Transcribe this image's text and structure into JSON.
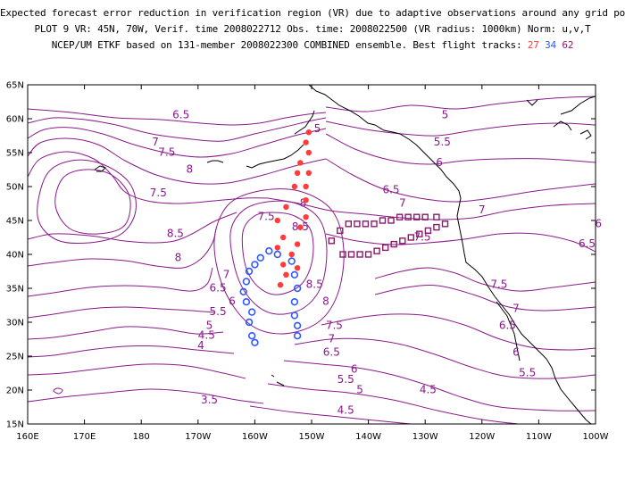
{
  "header": {
    "line1": "Expected forecast error reduction in verification region (VR) due to adaptive observations around any grid point.",
    "line2": "PLOT 9 VR: 45N, 70W, Verif. time 2008022712 Obs. time: 2008022500 (VR radius: 1000km) Norm: u,v,T",
    "line3_prefix": "NCEP/UM ETKF based on 131-member 2008022300 COMBINED ensemble.  Best flight tracks:",
    "track_27": "27",
    "track_34": "34",
    "track_62": "62"
  },
  "colors": {
    "contour": "#8a1a8a",
    "coast": "#000000",
    "track_27": "#ff3b3b",
    "track_34": "#2f58ff",
    "track_62": "#8b1a6b"
  },
  "axes": {
    "lat_labels": [
      "65N",
      "60N",
      "55N",
      "50N",
      "45N",
      "40N",
      "35N",
      "30N",
      "25N",
      "20N",
      "15N"
    ],
    "lon_labels": [
      "160E",
      "170E",
      "180",
      "170W",
      "160W",
      "150W",
      "140W",
      "130W",
      "120W",
      "110W",
      "100W"
    ]
  },
  "contour_labels": [
    {
      "t": "6.5",
      "lon": -173,
      "lat": 60.5
    },
    {
      "t": "7",
      "lon": -177.5,
      "lat": 56.5
    },
    {
      "t": "7.5",
      "lon": -175.5,
      "lat": 55
    },
    {
      "t": "8",
      "lon": -171.5,
      "lat": 52.5
    },
    {
      "t": "8.5",
      "lon": -174,
      "lat": 43
    },
    {
      "t": "8",
      "lon": -173.5,
      "lat": 39.5
    },
    {
      "t": "7.5",
      "lon": -158,
      "lat": 45.5
    },
    {
      "t": "7.5",
      "lon": -177,
      "lat": 49
    },
    {
      "t": "7",
      "lon": -165,
      "lat": 37
    },
    {
      "t": "6.5",
      "lon": -166.5,
      "lat": 35
    },
    {
      "t": "6",
      "lon": -164,
      "lat": 33
    },
    {
      "t": "5.5",
      "lon": -166.5,
      "lat": 31.5
    },
    {
      "t": "5",
      "lon": -168,
      "lat": 29.5
    },
    {
      "t": "4.5",
      "lon": -168.5,
      "lat": 28
    },
    {
      "t": "4",
      "lon": -169.5,
      "lat": 26.5
    },
    {
      "t": "3.5",
      "lon": -168,
      "lat": 18.5
    },
    {
      "t": "5",
      "lon": -149,
      "lat": 58.5
    },
    {
      "t": "5",
      "lon": -126.5,
      "lat": 60.5
    },
    {
      "t": "5.5",
      "lon": -127,
      "lat": 56.5
    },
    {
      "t": "6",
      "lon": -127.5,
      "lat": 53.5
    },
    {
      "t": "6.5",
      "lon": -136,
      "lat": 49.5
    },
    {
      "t": "7",
      "lon": -134,
      "lat": 47.5
    },
    {
      "t": "7.5",
      "lon": -130.5,
      "lat": 42.5
    },
    {
      "t": "7",
      "lon": -120,
      "lat": 46.5
    },
    {
      "t": "6",
      "lon": -99.5,
      "lat": 44.5
    },
    {
      "t": "6.5",
      "lon": -101.5,
      "lat": 41.5
    },
    {
      "t": "6.5",
      "lon": -90.5,
      "lat": 37.5
    },
    {
      "t": "7.5",
      "lon": -117,
      "lat": 35.5
    },
    {
      "t": "7",
      "lon": -114,
      "lat": 32
    },
    {
      "t": "6.5",
      "lon": -115.5,
      "lat": 29.5
    },
    {
      "t": "6",
      "lon": -114,
      "lat": 25.5
    },
    {
      "t": "5.5",
      "lon": -112,
      "lat": 22.5
    },
    {
      "t": "4.5",
      "lon": -129.5,
      "lat": 20
    },
    {
      "t": "8.5",
      "lon": -152,
      "lat": 44
    },
    {
      "t": "8",
      "lon": -151.5,
      "lat": 47.5
    },
    {
      "t": "8",
      "lon": -147.5,
      "lat": 33
    },
    {
      "t": "8.5",
      "lon": -149.5,
      "lat": 35.5
    },
    {
      "t": "7.5",
      "lon": -146,
      "lat": 29.5
    },
    {
      "t": "7",
      "lon": -146.5,
      "lat": 27.5
    },
    {
      "t": "6.5",
      "lon": -146.5,
      "lat": 25.5
    },
    {
      "t": "6",
      "lon": -142.5,
      "lat": 23
    },
    {
      "t": "5.5",
      "lon": -144,
      "lat": 21.5
    },
    {
      "t": "5",
      "lon": -141.5,
      "lat": 20
    },
    {
      "t": "4.5",
      "lon": -144,
      "lat": 17
    }
  ],
  "track_27": [
    [
      -150.5,
      58
    ],
    [
      -151,
      56.5
    ],
    [
      -150.5,
      55
    ],
    [
      -152,
      53.5
    ],
    [
      -150.5,
      52
    ],
    [
      -152.5,
      52
    ],
    [
      -151,
      50
    ],
    [
      -153,
      50
    ],
    [
      -151,
      48
    ],
    [
      -154.5,
      47
    ],
    [
      -151,
      45.5
    ],
    [
      -156,
      45
    ],
    [
      -152,
      44
    ],
    [
      -155,
      42.5
    ],
    [
      -152.5,
      41.5
    ],
    [
      -156,
      41
    ],
    [
      -153.5,
      40
    ],
    [
      -155,
      38.5
    ],
    [
      -152.5,
      38
    ],
    [
      -154.5,
      37
    ],
    [
      -155.5,
      35.5
    ]
  ],
  "track_34": [
    [
      -157.5,
      40.5
    ],
    [
      -156,
      40
    ],
    [
      -159,
      39.5
    ],
    [
      -153.5,
      39
    ],
    [
      -160,
      38.5
    ],
    [
      -161,
      37.5
    ],
    [
      -153,
      37
    ],
    [
      -161.5,
      36
    ],
    [
      -152.5,
      35
    ],
    [
      -162,
      34.5
    ],
    [
      -161.5,
      33
    ],
    [
      -153,
      33
    ],
    [
      -160.5,
      31.5
    ],
    [
      -153,
      31
    ],
    [
      -161,
      30
    ],
    [
      -152.5,
      29.5
    ],
    [
      -160.5,
      28
    ],
    [
      -152.5,
      28
    ],
    [
      -160,
      27
    ]
  ],
  "track_62": [
    [
      -146.5,
      42
    ],
    [
      -145,
      43.5
    ],
    [
      -143.5,
      44.5
    ],
    [
      -142,
      44.5
    ],
    [
      -140.5,
      44.5
    ],
    [
      -139,
      44.5
    ],
    [
      -137.5,
      45
    ],
    [
      -136,
      45
    ],
    [
      -134.5,
      45.5
    ],
    [
      -133,
      45.5
    ],
    [
      -131.5,
      45.5
    ],
    [
      -130,
      45.5
    ],
    [
      -128,
      45.5
    ],
    [
      -126.5,
      44.5
    ],
    [
      -128,
      44
    ],
    [
      -129.5,
      43.5
    ],
    [
      -131,
      43
    ],
    [
      -132.5,
      42.5
    ],
    [
      -134,
      42
    ],
    [
      -135.5,
      41.5
    ],
    [
      -137,
      41
    ],
    [
      -138.5,
      40.5
    ],
    [
      -140,
      40
    ],
    [
      -141.5,
      40
    ],
    [
      -143,
      40
    ],
    [
      -144.5,
      40
    ]
  ]
}
